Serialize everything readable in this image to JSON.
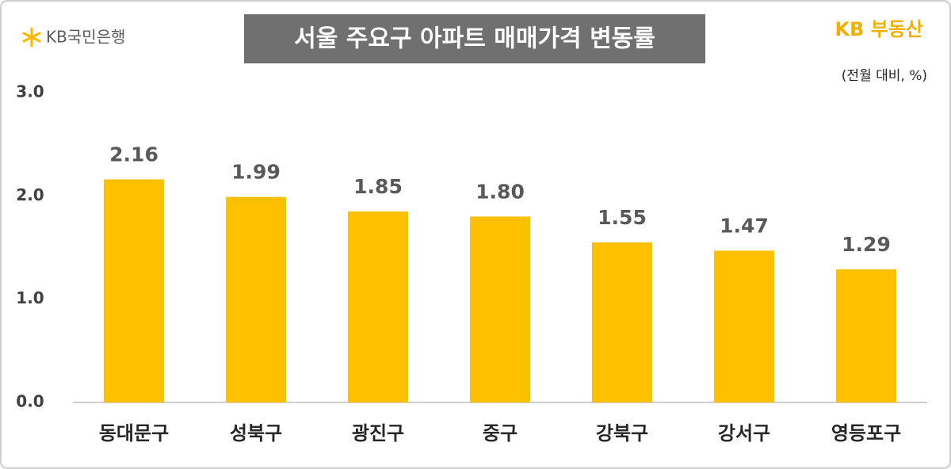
{
  "chart_data": {
    "type": "bar",
    "title": "서울 주요구 아파트 매매가격 변동률",
    "subtitle": "(전월 대비, %)",
    "brand_left": "KB국민은행",
    "brand_right": "KB 부동산",
    "categories": [
      "동대문구",
      "성북구",
      "광진구",
      "중구",
      "강북구",
      "강서구",
      "영등포구"
    ],
    "values": [
      2.16,
      1.99,
      1.85,
      1.8,
      1.55,
      1.47,
      1.29
    ],
    "value_labels": [
      "2.16",
      "1.99",
      "1.85",
      "1.80",
      "1.55",
      "1.47",
      "1.29"
    ],
    "color": "#ffc000",
    "ylim": [
      0,
      3
    ],
    "yticks": [
      {
        "value": 0,
        "label": "0.0"
      },
      {
        "value": 1,
        "label": "1.0"
      },
      {
        "value": 2,
        "label": "2.0"
      },
      {
        "value": 3,
        "label": "3.0"
      }
    ],
    "grid": false
  }
}
